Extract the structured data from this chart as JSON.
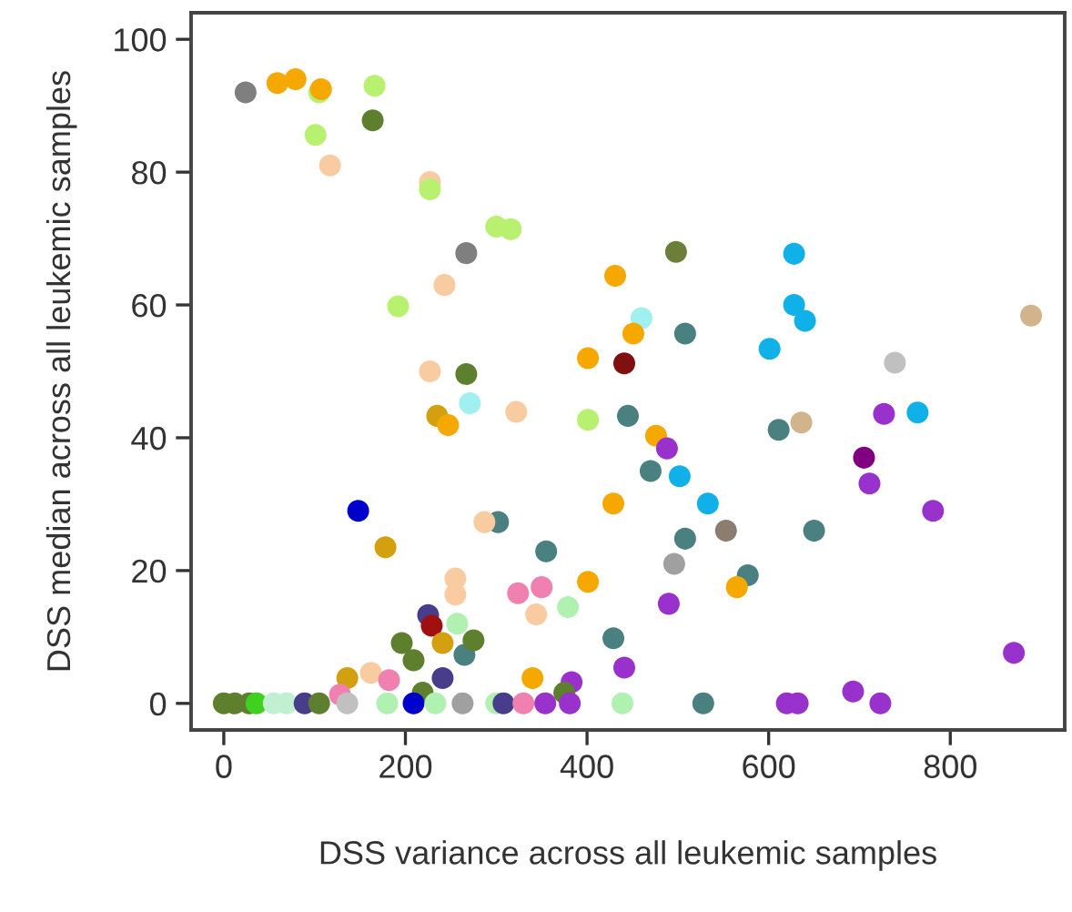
{
  "chart_data": {
    "type": "scatter",
    "xlabel": "DSS variance across all leukemic samples",
    "ylabel": "DSS median across all leukemic samples",
    "xlim": [
      -36,
      926
    ],
    "ylim": [
      -4,
      104
    ],
    "xticks": [
      0,
      200,
      400,
      600,
      800
    ],
    "yticks": [
      0,
      20,
      40,
      60,
      80,
      100
    ],
    "marker": "circle",
    "grid": false,
    "x": [
      24,
      59,
      79,
      105,
      107,
      166,
      164,
      101,
      117,
      227,
      227,
      267,
      243,
      192,
      227,
      267,
      300,
      316,
      498,
      431,
      460,
      451,
      508,
      401,
      441,
      601,
      628,
      628,
      640,
      889,
      739,
      271,
      235,
      247,
      148,
      178,
      255,
      255,
      225,
      229,
      257,
      196,
      209,
      241,
      265,
      275,
      241,
      219,
      136,
      162,
      182,
      128,
      0,
      12,
      28,
      36,
      55,
      69,
      89,
      105,
      136,
      180,
      209,
      233,
      263,
      322,
      401,
      445,
      476,
      488,
      470,
      502,
      429,
      533,
      553,
      508,
      302,
      287,
      355,
      496,
      401,
      577,
      565,
      324,
      350,
      379,
      490,
      344,
      429,
      340,
      441,
      383,
      375,
      300,
      308,
      330,
      354,
      381,
      439,
      528,
      611,
      636,
      727,
      764,
      705,
      711,
      781,
      650,
      870,
      620,
      632,
      693,
      723
    ],
    "values": [
      92,
      93.4,
      94,
      92,
      92.5,
      93,
      87.8,
      85.6,
      81,
      78.5,
      77.4,
      67.8,
      63,
      59.8,
      50,
      49.6,
      71.8,
      71.4,
      68,
      64.4,
      58,
      55.7,
      55.7,
      52,
      51.2,
      53.4,
      67.7,
      60,
      57.6,
      58.4,
      51.3,
      45.2,
      43.3,
      41.9,
      29,
      23.5,
      18.8,
      16.4,
      13.3,
      11.7,
      12,
      9.1,
      6.5,
      9.1,
      7.3,
      9.5,
      3.8,
      1.6,
      3.8,
      4.6,
      3.5,
      1.3,
      0,
      0,
      0,
      0,
      0,
      0,
      0,
      0,
      0,
      0,
      0,
      0,
      0,
      43.9,
      42.7,
      43.3,
      40.3,
      38.4,
      35,
      34.2,
      30.1,
      30.1,
      26,
      24.8,
      27.3,
      27.3,
      22.9,
      21,
      18.3,
      19.3,
      17.5,
      16.6,
      17.5,
      14.5,
      15,
      13.4,
      9.8,
      3.8,
      5.4,
      3.2,
      1.6,
      0,
      0,
      0,
      0,
      0,
      0,
      0,
      41.2,
      42.3,
      43.6,
      43.8,
      37,
      33.1,
      29,
      26,
      7.6,
      0,
      0,
      1.8,
      0
    ],
    "colors": [
      "#7f7f7f",
      "#f5a800",
      "#f5a800",
      "#b8f070",
      "#f5a800",
      "#b8f070",
      "#5e7f2e",
      "#b8f070",
      "#f8cba0",
      "#f8cba0",
      "#b8f070",
      "#7f7f7f",
      "#f8cba0",
      "#b8f070",
      "#f8cba0",
      "#5e7f2e",
      "#b8f070",
      "#b8f070",
      "#6b7f3a",
      "#f5a800",
      "#a0f0f0",
      "#f5a800",
      "#4a8080",
      "#f5a800",
      "#801010",
      "#10b0e8",
      "#10b0e8",
      "#10b0e8",
      "#10b0e8",
      "#d2b48c",
      "#c0c0c0",
      "#a0f0f0",
      "#d4a010",
      "#f5a800",
      "#0000cc",
      "#d4a010",
      "#f8cba0",
      "#f8cba0",
      "#483d8b",
      "#a01010",
      "#b0f0b0",
      "#5e7f2e",
      "#5e7f2e",
      "#d4a010",
      "#4a8080",
      "#5e7f2e",
      "#483d8b",
      "#5e7f2e",
      "#d4a010",
      "#f8cba0",
      "#f080b0",
      "#f080b0",
      "#5e7f2e",
      "#5e7f2e",
      "#5e7f2e",
      "#40d020",
      "#c0f0d0",
      "#c0f0d0",
      "#483d8b",
      "#5e7f2e",
      "#c0c0c0",
      "#b0f0b0",
      "#0000cc",
      "#b0f0b0",
      "#a0a0a0",
      "#f8cba0",
      "#b8f070",
      "#4a8080",
      "#f5a800",
      "#9932cc",
      "#4a8080",
      "#10b0e8",
      "#f5a800",
      "#10b0e8",
      "#8b7d70",
      "#4a8080",
      "#4a8080",
      "#f8cba0",
      "#4a8080",
      "#a0a0a0",
      "#f5a800",
      "#4a8080",
      "#f5a800",
      "#f080b0",
      "#f080b0",
      "#b0f0b0",
      "#9932cc",
      "#f8cba0",
      "#4a8080",
      "#f5a800",
      "#9932cc",
      "#9932cc",
      "#5e7f2e",
      "#b0f0b0",
      "#483d8b",
      "#f080b0",
      "#9932cc",
      "#9932cc",
      "#b0f0b0",
      "#4a8080",
      "#4a8080",
      "#d2b48c",
      "#9932cc",
      "#10b0e8",
      "#800080",
      "#9932cc",
      "#9932cc",
      "#4a8080",
      "#9932cc",
      "#9932cc",
      "#9932cc",
      "#9932cc",
      "#9932cc"
    ]
  }
}
